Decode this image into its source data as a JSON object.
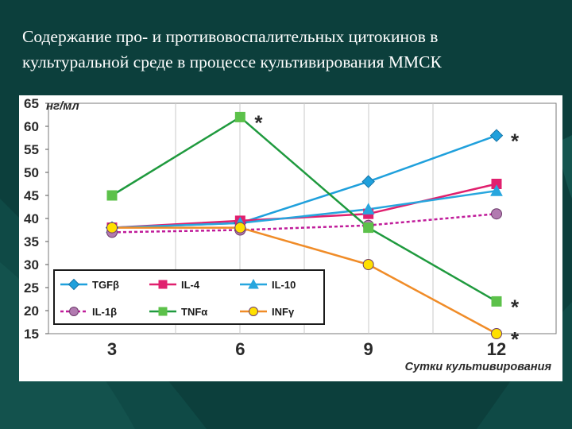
{
  "slide": {
    "title_line1": "Содержание про- и противовоспалительных цитокинов в",
    "title_line2": "культуральной среде в процессе культивирования ММСК"
  },
  "chart_data": {
    "type": "line",
    "ylabel": "нг/мл",
    "xlabel": "Сутки культивирования",
    "categories": [
      "3",
      "6",
      "9",
      "12"
    ],
    "ylim": [
      15,
      65
    ],
    "yticks": [
      15,
      20,
      25,
      30,
      35,
      40,
      45,
      50,
      55,
      60,
      65
    ],
    "grid": "vertical",
    "legend_position": "bottom-left",
    "series": [
      {
        "name": "TGFβ",
        "values": [
          38,
          39,
          48,
          58
        ],
        "color": "#1fa0dc",
        "marker": "diamond",
        "dashed": false
      },
      {
        "name": "IL-4",
        "values": [
          38,
          39.5,
          41,
          47.5
        ],
        "color": "#e0206e",
        "marker": "square",
        "dashed": false
      },
      {
        "name": "IL-10",
        "values": [
          38,
          39,
          42,
          46
        ],
        "color": "#27a6de",
        "marker": "triangle",
        "dashed": false
      },
      {
        "name": "IL-1β",
        "values": [
          37,
          37.5,
          38.5,
          41
        ],
        "color": "#c01c9a",
        "marker": "circle",
        "dashed": true,
        "fill": "#b27ab0"
      },
      {
        "name": "TNFα",
        "values": [
          45,
          62,
          38,
          22
        ],
        "color": "#1f9a3e",
        "marker": "square",
        "dashed": false,
        "fill": "#5cc14a"
      },
      {
        "name": "INFγ",
        "values": [
          38,
          38,
          30,
          15
        ],
        "color": "#f08c28",
        "marker": "circle",
        "dashed": false,
        "fill": "#ffe000"
      }
    ],
    "annotations": [
      {
        "text": "*",
        "category": "6",
        "value": 62
      },
      {
        "text": "*",
        "category": "12",
        "value": 58
      },
      {
        "text": "*",
        "category": "12",
        "value": 22
      },
      {
        "text": "*",
        "category": "12",
        "value": 15
      }
    ]
  }
}
